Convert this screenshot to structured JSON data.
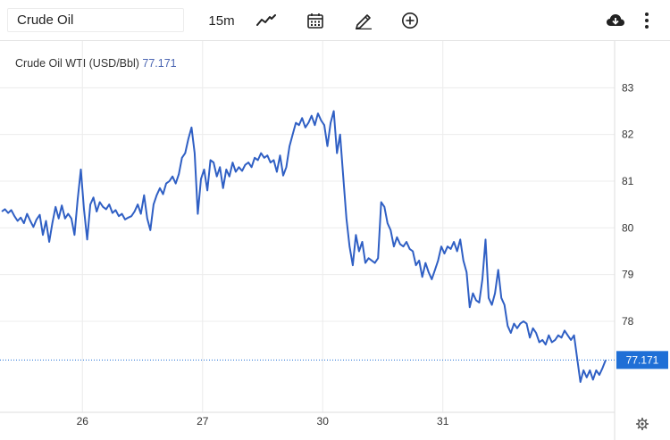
{
  "toolbar": {
    "symbol": "Crude Oil",
    "interval": "15m",
    "icons": [
      "line-chart-icon",
      "calendar-icon",
      "pencil-icon",
      "add-circle-icon",
      "download-cloud-icon",
      "more-vertical-icon"
    ]
  },
  "colors": {
    "line": "#2f5fc4",
    "accent": "#1f6fd6",
    "grid": "#ececec"
  },
  "chart_data": {
    "type": "line",
    "title": "Crude Oil WTI (USD/Bbl)",
    "last_value": 77.171,
    "last_value_label": "77.171",
    "ylim": [
      76.05,
      84.0
    ],
    "yticks": [
      78,
      79,
      80,
      81,
      82,
      83
    ],
    "ytick_labels": [
      "78",
      "79",
      "80",
      "81",
      "82",
      "83"
    ],
    "xticks": [
      {
        "label": "26",
        "at": 25.5
      },
      {
        "label": "27",
        "at": 63.5
      },
      {
        "label": "30",
        "at": 101.5
      },
      {
        "label": "31",
        "at": 139.5
      }
    ],
    "grid": true,
    "series": [
      {
        "values": [
          80.35,
          80.4,
          80.32,
          80.38,
          80.25,
          80.15,
          80.22,
          80.1,
          80.3,
          80.15,
          80.02,
          80.18,
          80.28,
          79.85,
          80.15,
          79.7,
          80.1,
          80.45,
          80.2,
          80.48,
          80.2,
          80.3,
          80.2,
          79.85,
          80.6,
          81.25,
          80.4,
          79.75,
          80.5,
          80.65,
          80.35,
          80.55,
          80.45,
          80.4,
          80.5,
          80.32,
          80.38,
          80.25,
          80.3,
          80.18,
          80.22,
          80.25,
          80.35,
          80.5,
          80.3,
          80.7,
          80.2,
          79.95,
          80.5,
          80.7,
          80.85,
          80.72,
          80.95,
          81.0,
          81.1,
          80.95,
          81.15,
          81.5,
          81.6,
          81.9,
          82.15,
          81.6,
          80.3,
          81.05,
          81.25,
          80.8,
          81.45,
          81.4,
          81.1,
          81.3,
          80.85,
          81.25,
          81.1,
          81.4,
          81.2,
          81.3,
          81.22,
          81.35,
          81.4,
          81.3,
          81.5,
          81.45,
          81.6,
          81.5,
          81.55,
          81.4,
          81.45,
          81.2,
          81.55,
          81.12,
          81.3,
          81.75,
          82.0,
          82.25,
          82.2,
          82.35,
          82.15,
          82.25,
          82.4,
          82.2,
          82.45,
          82.3,
          82.2,
          81.75,
          82.25,
          82.5,
          81.6,
          82.0,
          81.1,
          80.2,
          79.6,
          79.2,
          79.85,
          79.5,
          79.7,
          79.25,
          79.35,
          79.3,
          79.25,
          79.35,
          80.55,
          80.45,
          80.1,
          79.95,
          79.6,
          79.8,
          79.65,
          79.6,
          79.7,
          79.55,
          79.5,
          79.2,
          79.3,
          78.95,
          79.25,
          79.05,
          78.9,
          79.1,
          79.3,
          79.6,
          79.45,
          79.6,
          79.55,
          79.7,
          79.5,
          79.75,
          79.3,
          79.05,
          78.3,
          78.6,
          78.45,
          78.4,
          78.9,
          79.75,
          78.5,
          78.35,
          78.6,
          79.1,
          78.5,
          78.35,
          77.9,
          77.75,
          77.95,
          77.85,
          77.95,
          78.0,
          77.95,
          77.65,
          77.85,
          77.75,
          77.55,
          77.6,
          77.5,
          77.7,
          77.55,
          77.6,
          77.7,
          77.65,
          77.8,
          77.7,
          77.6,
          77.7,
          77.2,
          76.7,
          76.95,
          76.8,
          76.95,
          76.75,
          76.95,
          76.85,
          77.0,
          77.17
        ]
      }
    ]
  }
}
